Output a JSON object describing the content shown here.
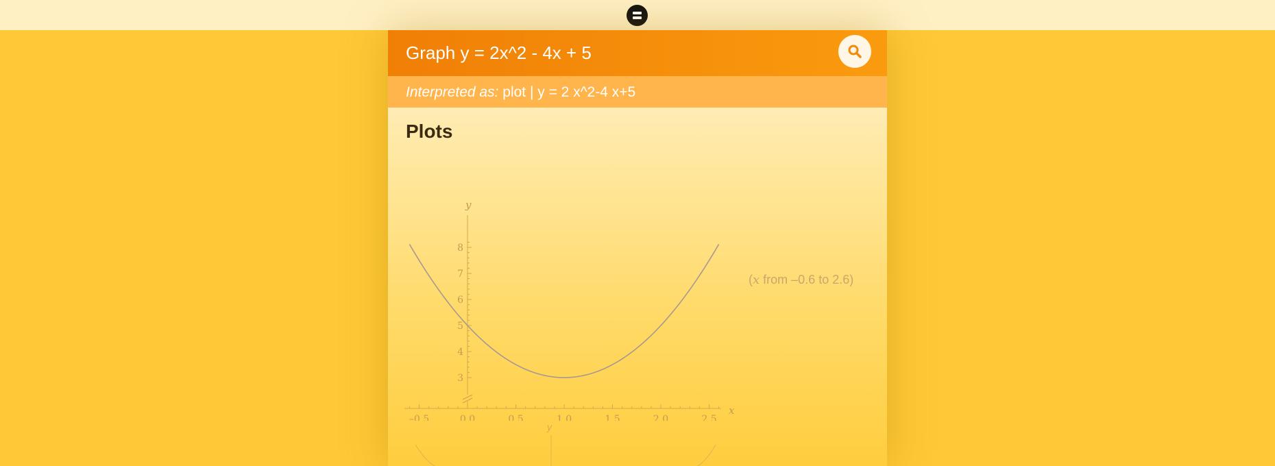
{
  "query": {
    "text": "Graph y = 2x^2 - 4x + 5"
  },
  "search_icon": "search-icon",
  "menu_icon": "menu-icon",
  "interpretation": {
    "label": "Interpreted as:",
    "value": "plot | y = 2 x^2-4 x+5"
  },
  "pod": {
    "title": "Plots",
    "range_var": "x",
    "range_text": "from –0.6 to 2.6"
  },
  "colors": {
    "header": "#f48a0a",
    "interp_bar": "#ffb54c",
    "background": "#fec836",
    "curve": "#a89890"
  },
  "second_plot": {
    "ylabel": "y"
  },
  "chart_data": {
    "type": "line",
    "function": "y = 2x^2 - 4x + 5",
    "x": [
      -0.6,
      -0.4,
      -0.2,
      0.0,
      0.2,
      0.4,
      0.6,
      0.8,
      1.0,
      1.2,
      1.4,
      1.6,
      1.8,
      2.0,
      2.2,
      2.4,
      2.6
    ],
    "y": [
      8.12,
      6.92,
      5.88,
      5.0,
      4.28,
      3.72,
      3.32,
      3.08,
      3.0,
      3.08,
      3.32,
      3.72,
      4.28,
      5.0,
      5.88,
      6.92,
      8.12
    ],
    "xlabel": "x",
    "ylabel": "y",
    "xlim": [
      -0.6,
      2.6
    ],
    "ylim": [
      2.7,
      8.3
    ],
    "x_ticks": [
      {
        "value": -0.5,
        "label": "–0.5"
      },
      {
        "value": 0.0,
        "label": "0.0"
      },
      {
        "value": 0.5,
        "label": "0.5"
      },
      {
        "value": 1.0,
        "label": "1.0"
      },
      {
        "value": 1.5,
        "label": "1.5"
      },
      {
        "value": 2.0,
        "label": "2.0"
      },
      {
        "value": 2.5,
        "label": "2.5"
      }
    ],
    "y_ticks": [
      {
        "value": 3,
        "label": "3"
      },
      {
        "value": 4,
        "label": "4"
      },
      {
        "value": 5,
        "label": "5"
      },
      {
        "value": 6,
        "label": "6"
      },
      {
        "value": 7,
        "label": "7"
      },
      {
        "value": 8,
        "label": "8"
      }
    ],
    "grid": false
  }
}
